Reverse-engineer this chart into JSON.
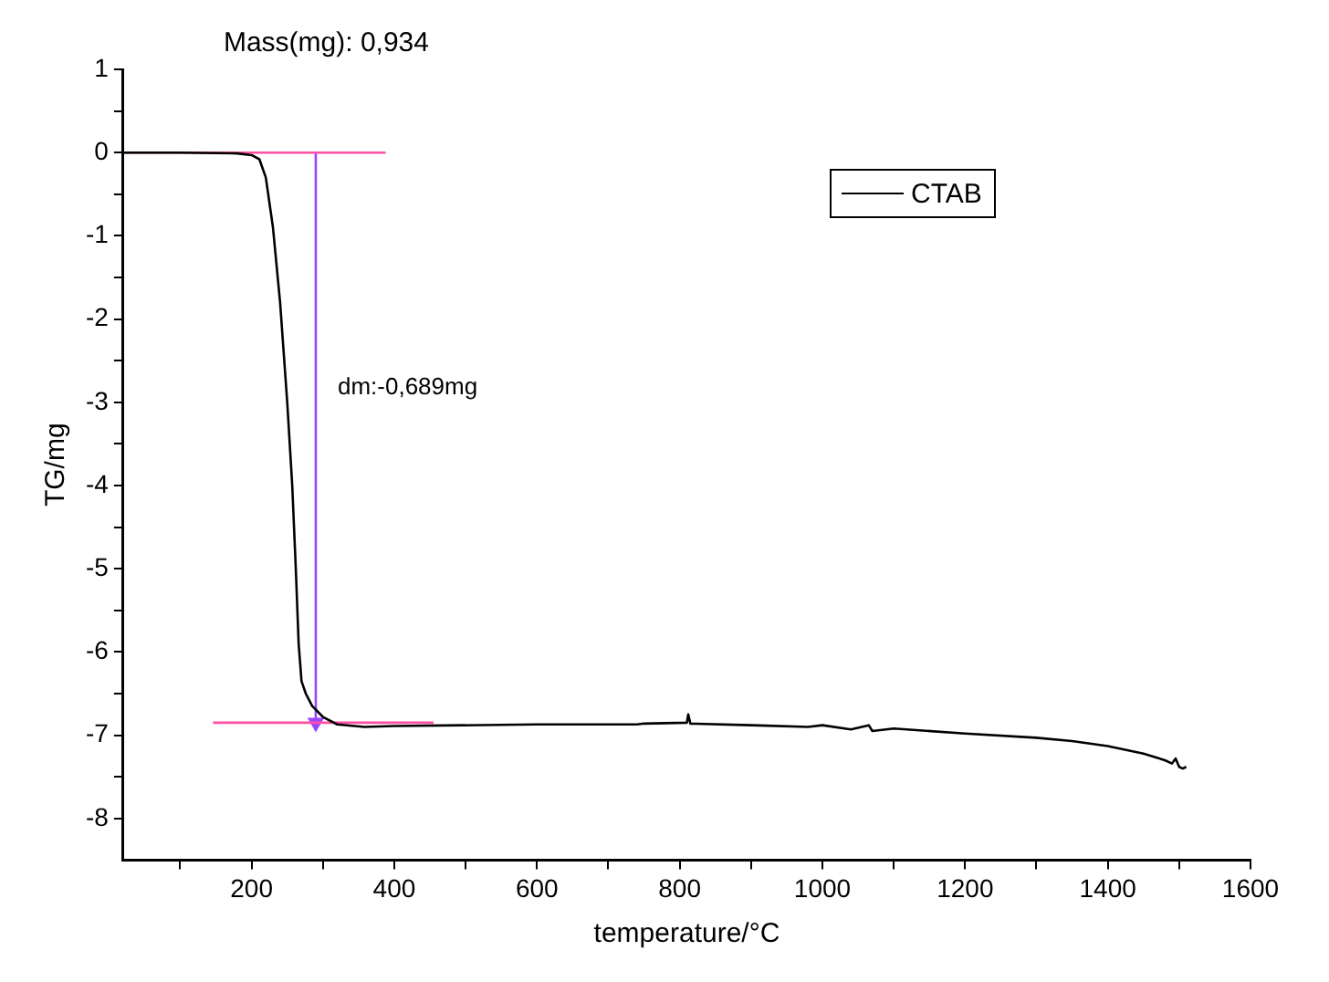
{
  "chart_data": {
    "type": "line",
    "title": "Mass(mg): 0,934",
    "xlabel": "temperature/°C",
    "ylabel": "TG/mg",
    "xlim": [
      20,
      1600
    ],
    "ylim": [
      -8.5,
      1
    ],
    "xticks": [
      {
        "value": 100,
        "label": null
      },
      200,
      {
        "value": 300,
        "label": null
      },
      400,
      {
        "value": 500,
        "label": null
      },
      600,
      {
        "value": 700,
        "label": null
      },
      800,
      {
        "value": 900,
        "label": null
      },
      1000,
      {
        "value": 1100,
        "label": null
      },
      1200,
      {
        "value": 1300,
        "label": null
      },
      1400,
      {
        "value": 1500,
        "label": null
      },
      1600
    ],
    "yticks": [
      1,
      {
        "value": 0.5,
        "label": null
      },
      0,
      {
        "value": -0.5,
        "label": null
      },
      -1,
      {
        "value": -1.5,
        "label": null
      },
      -2,
      {
        "value": -2.5,
        "label": null
      },
      -3,
      {
        "value": -3.5,
        "label": null
      },
      -4,
      {
        "value": -4.5,
        "label": null
      },
      -5,
      {
        "value": -5.5,
        "label": null
      },
      -6,
      {
        "value": -6.5,
        "label": null
      },
      -7,
      {
        "value": -7.5,
        "label": null
      },
      -8
    ],
    "grid": false,
    "legend": "top right",
    "marker": "none",
    "line_style": "solid",
    "series": [
      {
        "name": "CTAB",
        "color": "#000000",
        "x": [
          20,
          100,
          180,
          200,
          211,
          220,
          230,
          240,
          250,
          257,
          262,
          266,
          270,
          276,
          285,
          300,
          320,
          358,
          400,
          600,
          740,
          750,
          810,
          812,
          815,
          900,
          980,
          1000,
          1040,
          1065,
          1070,
          1100,
          1200,
          1300,
          1350,
          1400,
          1450,
          1480,
          1490,
          1495,
          1500,
          1505,
          1510
        ],
        "values": [
          0,
          0,
          -0.01,
          -0.03,
          -0.08,
          -0.3,
          -0.9,
          -1.8,
          -3.0,
          -4.0,
          -5.0,
          -5.9,
          -6.35,
          -6.5,
          -6.65,
          -6.78,
          -6.87,
          -6.9,
          -6.89,
          -6.87,
          -6.87,
          -6.86,
          -6.85,
          -6.75,
          -6.86,
          -6.88,
          -6.9,
          -6.88,
          -6.93,
          -6.88,
          -6.95,
          -6.92,
          -6.98,
          -7.03,
          -7.07,
          -7.13,
          -7.22,
          -7.3,
          -7.34,
          -7.28,
          -7.38,
          -7.4,
          -7.38
        ]
      },
      {
        "color": "#ff4fa3",
        "x": [
          20,
          388
        ],
        "values": [
          0,
          0
        ]
      },
      {
        "color": "#ff4fa3",
        "x": [
          146,
          455
        ],
        "values": [
          -6.85,
          -6.85
        ]
      },
      {
        "color": "#9b45ff",
        "marker": "triangle",
        "x": [
          290,
          290
        ],
        "values": [
          0,
          -6.85
        ]
      }
    ],
    "annotations": [
      {
        "text": "dm:-0,689mg",
        "x": 290,
        "y": -2.9
      }
    ]
  }
}
